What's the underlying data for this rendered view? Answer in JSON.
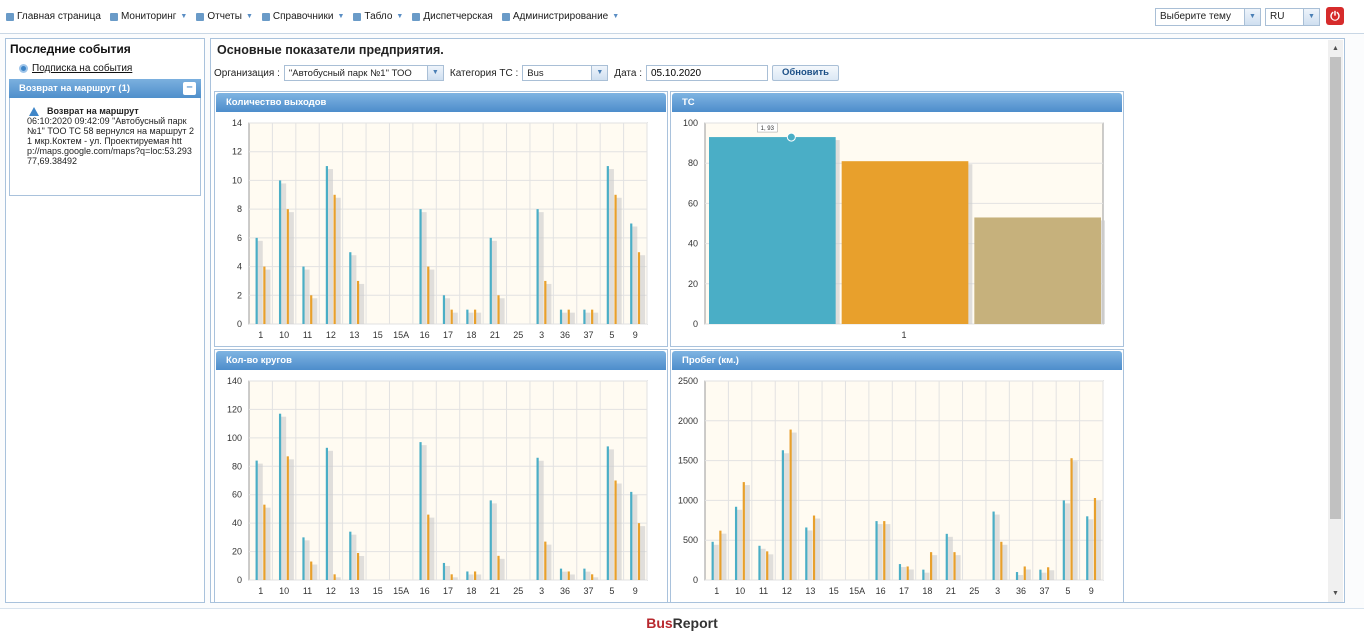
{
  "menu": [
    {
      "label": "Главная страница",
      "icon": "home-icon",
      "dropdown": false
    },
    {
      "label": "Мониторинг",
      "icon": "monitor-icon",
      "dropdown": true
    },
    {
      "label": "Отчеты",
      "icon": "report-icon",
      "dropdown": true
    },
    {
      "label": "Справочники",
      "icon": "book-icon",
      "dropdown": true
    },
    {
      "label": "Табло",
      "icon": "board-icon",
      "dropdown": true
    },
    {
      "label": "Диспетчерская",
      "icon": "dispatch-icon",
      "dropdown": false
    },
    {
      "label": "Администрирование",
      "icon": "gear-icon",
      "dropdown": true
    }
  ],
  "theme_select": {
    "value": "Выберите тему"
  },
  "lang_select": {
    "value": "RU"
  },
  "left": {
    "title": "Последние события",
    "subscribe": "Подписка на события",
    "event_group": "Возврат на маршрут (1)",
    "event_title": "Возврат на маршрут",
    "event_text": "06:10:2020 09:42:09 \"Автобусный парк №1\" ТОО ТС 58 вернулся на маршрут 21 мкр.Коктем - ул. Проектируемая http://maps.google.com/maps?q=loc:53.29377,69.38492"
  },
  "main": {
    "title": "Основные показатели предприятия.",
    "org_label": "Организация :",
    "org_value": "\"Автобусный парк №1\" ТОО",
    "cat_label": "Категория ТС :",
    "cat_value": "Bus",
    "date_label": "Дата :",
    "date_value": "05.10.2020",
    "refresh": "Обновить"
  },
  "colors": {
    "teal": "#4aaec6",
    "orange": "#e8a02c",
    "khaki": "#c6b17c",
    "plot_bg": "#fffbf2"
  },
  "chart_data": [
    {
      "type": "bar",
      "title": "Количество выходов",
      "categories": [
        "1",
        "10",
        "11",
        "12",
        "13",
        "15",
        "15А",
        "16",
        "17",
        "18",
        "21",
        "25",
        "3",
        "36",
        "37",
        "5",
        "9"
      ],
      "series": [
        {
          "values": [
            6,
            10,
            4,
            11,
            5,
            0,
            0,
            8,
            2,
            1,
            6,
            0,
            8,
            1,
            1,
            11,
            7
          ]
        },
        {
          "values": [
            4,
            8,
            2,
            9,
            3,
            0,
            0,
            4,
            1,
            1,
            2,
            0,
            3,
            1,
            1,
            9,
            5
          ]
        }
      ],
      "ylim": [
        0,
        14
      ],
      "yticks": [
        0,
        2,
        4,
        6,
        8,
        10,
        12,
        14
      ]
    },
    {
      "type": "bar",
      "title": "ТС",
      "categories": [
        "1"
      ],
      "series": [
        {
          "values": [
            93
          ]
        },
        {
          "values": [
            81
          ]
        },
        {
          "values": [
            53
          ]
        }
      ],
      "ylim": [
        0,
        100
      ],
      "yticks": [
        0,
        20,
        40,
        60,
        80,
        100
      ],
      "annotation": "1, 93"
    },
    {
      "type": "bar",
      "title": "Кол-во кругов",
      "categories": [
        "1",
        "10",
        "11",
        "12",
        "13",
        "15",
        "15А",
        "16",
        "17",
        "18",
        "21",
        "25",
        "3",
        "36",
        "37",
        "5",
        "9"
      ],
      "series": [
        {
          "values": [
            84,
            117,
            30,
            93,
            34,
            0,
            0,
            97,
            12,
            6,
            56,
            0,
            86,
            8,
            8,
            94,
            62
          ]
        },
        {
          "values": [
            53,
            87,
            13,
            4,
            19,
            0,
            0,
            46,
            4,
            6,
            17,
            0,
            27,
            6,
            4,
            70,
            40
          ]
        }
      ],
      "ylim": [
        0,
        140
      ],
      "yticks": [
        0,
        20,
        40,
        60,
        80,
        100,
        120,
        140
      ]
    },
    {
      "type": "bar",
      "title": "Пробег (км.)",
      "categories": [
        "1",
        "10",
        "11",
        "12",
        "13",
        "15",
        "15А",
        "16",
        "17",
        "18",
        "21",
        "25",
        "3",
        "36",
        "37",
        "5",
        "9"
      ],
      "series": [
        {
          "values": [
            480,
            920,
            430,
            1630,
            660,
            0,
            0,
            740,
            200,
            130,
            580,
            0,
            860,
            100,
            130,
            1000,
            800
          ]
        },
        {
          "values": [
            620,
            1230,
            360,
            1890,
            810,
            0,
            0,
            740,
            170,
            350,
            350,
            0,
            480,
            170,
            160,
            1530,
            1030
          ]
        }
      ],
      "ylim": [
        0,
        2500
      ],
      "yticks": [
        0,
        500,
        1000,
        1500,
        2000,
        2500
      ]
    }
  ]
}
